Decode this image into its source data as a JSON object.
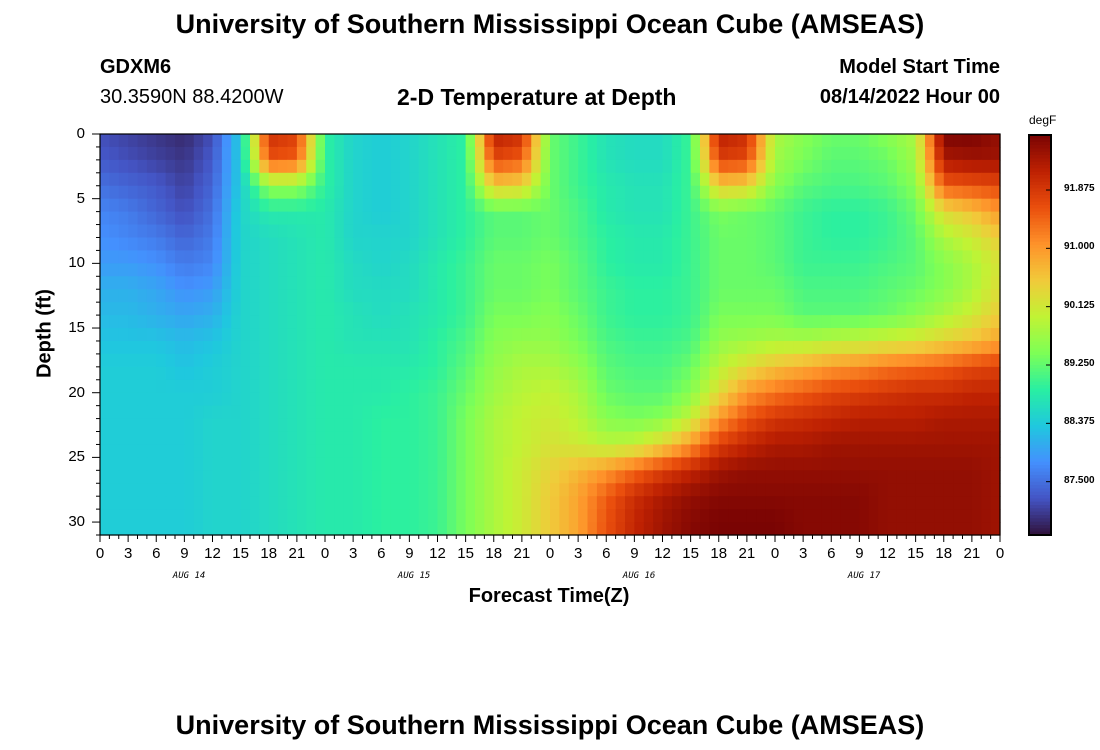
{
  "header": {
    "title": "University of Southern Mississippi Ocean Cube (AMSEAS)",
    "station_id": "GDXM6",
    "station_coords": "30.3590N  88.4200W",
    "plot_title": "2-D Temperature at Depth",
    "model_start_label": "Model Start Time",
    "model_start_value": "08/14/2022 Hour 00"
  },
  "footer": {
    "title": "University of Southern Mississippi Ocean Cube (AMSEAS)"
  },
  "chart_data": {
    "type": "heatmap",
    "xlabel": "Forecast Time(Z)",
    "ylabel": "Depth (ft)",
    "colorbar_label": "degF",
    "x_range_hours": [
      0,
      96
    ],
    "y_range_ft": [
      0,
      31
    ],
    "x_tick_labels": [
      "0",
      "3",
      "6",
      "9",
      "12",
      "15",
      "18",
      "21",
      "0",
      "3",
      "6",
      "9",
      "12",
      "15",
      "18",
      "21",
      "0",
      "3",
      "6",
      "9",
      "12",
      "15",
      "18",
      "21",
      "0",
      "3",
      "6",
      "9",
      "12",
      "15",
      "18",
      "21",
      "0"
    ],
    "day_labels": [
      "AUG 14",
      "AUG 15",
      "AUG 16",
      "AUG 17"
    ],
    "y_tick_labels": [
      "0",
      "5",
      "10",
      "15",
      "20",
      "25",
      "30"
    ],
    "colorbar_ticks": [
      "91.875",
      "91.000",
      "90.125",
      "89.250",
      "88.375",
      "87.500"
    ],
    "value_range_degF": [
      86.7,
      92.7
    ],
    "colorscale": [
      "#30123b",
      "#4454c4",
      "#4490fe",
      "#1fc8de",
      "#29efa2",
      "#7dff56",
      "#c1f334",
      "#f1ca3a",
      "#fe922a",
      "#ea4f0d",
      "#be2102",
      "#7a0403"
    ],
    "grid": false,
    "time_hours": [
      0,
      3,
      6,
      9,
      12,
      15,
      18,
      21,
      24,
      27,
      30,
      33,
      36,
      39,
      42,
      45,
      48,
      51,
      54,
      57,
      60,
      63,
      66,
      69,
      72,
      75,
      78,
      81,
      84,
      87,
      90,
      93,
      96
    ],
    "depth_ft": [
      0,
      2,
      4,
      6,
      8,
      10,
      12,
      14,
      16,
      18,
      20,
      22,
      24,
      26,
      28,
      30,
      31
    ],
    "values_degF": [
      [
        87.2,
        87.1,
        87.0,
        86.9,
        87.2,
        88.4,
        92.0,
        91.8,
        88.9,
        88.5,
        88.4,
        88.5,
        88.7,
        88.9,
        92.2,
        92.0,
        89.3,
        89.0,
        88.7,
        88.6,
        88.6,
        89.0,
        92.2,
        92.0,
        89.8,
        89.5,
        89.3,
        89.3,
        89.5,
        89.8,
        92.7,
        92.7,
        92.5
      ],
      [
        87.3,
        87.2,
        87.1,
        87.0,
        87.3,
        88.4,
        91.6,
        91.5,
        88.9,
        88.5,
        88.4,
        88.5,
        88.7,
        88.9,
        91.7,
        91.5,
        89.3,
        89.0,
        88.7,
        88.6,
        88.6,
        89.0,
        91.8,
        91.7,
        89.7,
        89.4,
        89.2,
        89.2,
        89.3,
        89.7,
        92.3,
        92.4,
        92.4
      ],
      [
        87.5,
        87.4,
        87.3,
        87.1,
        87.4,
        88.4,
        89.6,
        89.6,
        88.9,
        88.5,
        88.4,
        88.5,
        88.7,
        88.9,
        90.5,
        90.4,
        89.3,
        89.0,
        88.8,
        88.7,
        88.7,
        89.0,
        90.5,
        90.4,
        89.5,
        89.2,
        89.1,
        89.1,
        89.2,
        89.5,
        91.5,
        91.6,
        91.7
      ],
      [
        87.7,
        87.6,
        87.4,
        87.2,
        87.5,
        88.5,
        88.8,
        88.8,
        88.8,
        88.5,
        88.4,
        88.5,
        88.7,
        88.9,
        89.2,
        89.2,
        89.3,
        89.1,
        88.8,
        88.7,
        88.7,
        89.0,
        89.4,
        89.3,
        89.2,
        89.0,
        88.9,
        88.9,
        89.0,
        89.3,
        90.3,
        90.6,
        91.0
      ],
      [
        87.8,
        87.7,
        87.6,
        87.4,
        87.6,
        88.5,
        88.6,
        88.7,
        88.8,
        88.5,
        88.5,
        88.5,
        88.7,
        88.9,
        89.2,
        89.2,
        89.3,
        89.1,
        88.9,
        88.8,
        88.8,
        89.0,
        89.3,
        89.3,
        89.2,
        89.0,
        88.9,
        88.9,
        89.0,
        89.2,
        89.8,
        90.1,
        90.5
      ],
      [
        87.9,
        87.9,
        87.8,
        87.6,
        87.7,
        88.5,
        88.6,
        88.7,
        88.8,
        88.6,
        88.5,
        88.6,
        88.8,
        89.0,
        89.3,
        89.3,
        89.4,
        89.2,
        88.9,
        88.8,
        88.8,
        89.0,
        89.3,
        89.3,
        89.2,
        89.0,
        89.0,
        89.0,
        89.1,
        89.2,
        89.5,
        89.8,
        90.2
      ],
      [
        88.1,
        88.1,
        88.0,
        87.8,
        87.9,
        88.5,
        88.6,
        88.7,
        88.8,
        88.6,
        88.6,
        88.6,
        88.8,
        89.0,
        89.3,
        89.3,
        89.4,
        89.2,
        89.0,
        88.9,
        88.9,
        89.0,
        89.3,
        89.3,
        89.3,
        89.1,
        89.1,
        89.1,
        89.2,
        89.3,
        89.5,
        89.8,
        90.3
      ],
      [
        88.2,
        88.2,
        88.1,
        88.0,
        88.1,
        88.5,
        88.6,
        88.7,
        88.8,
        88.7,
        88.6,
        88.7,
        88.8,
        89.0,
        89.4,
        89.4,
        89.5,
        89.3,
        89.0,
        88.9,
        88.9,
        89.0,
        89.4,
        89.4,
        89.4,
        89.2,
        89.2,
        89.2,
        89.3,
        89.5,
        89.8,
        90.1,
        90.5
      ],
      [
        88.3,
        88.3,
        88.3,
        88.2,
        88.3,
        88.5,
        88.6,
        88.7,
        88.8,
        88.7,
        88.7,
        88.7,
        88.9,
        89.1,
        89.5,
        89.6,
        89.6,
        89.4,
        89.1,
        89.0,
        89.0,
        89.1,
        89.6,
        89.7,
        89.8,
        89.8,
        89.9,
        90.0,
        90.1,
        90.2,
        90.4,
        90.6,
        90.9
      ],
      [
        88.4,
        88.4,
        88.4,
        88.3,
        88.4,
        88.5,
        88.6,
        88.7,
        88.8,
        88.8,
        88.8,
        88.8,
        88.9,
        89.2,
        89.6,
        89.8,
        89.8,
        89.6,
        89.2,
        89.1,
        89.1,
        89.3,
        89.9,
        90.3,
        90.6,
        90.8,
        91.0,
        91.1,
        91.3,
        91.4,
        91.5,
        91.7,
        91.8
      ],
      [
        88.4,
        88.4,
        88.4,
        88.4,
        88.4,
        88.5,
        88.6,
        88.7,
        88.8,
        88.8,
        88.8,
        88.9,
        89.0,
        89.3,
        89.7,
        89.9,
        90.0,
        89.8,
        89.3,
        89.2,
        89.2,
        89.5,
        90.3,
        91.0,
        91.3,
        91.5,
        91.7,
        91.8,
        91.9,
        92.0,
        92.0,
        92.1,
        92.1
      ],
      [
        88.4,
        88.4,
        88.4,
        88.4,
        88.5,
        88.5,
        88.6,
        88.7,
        88.8,
        88.8,
        88.9,
        88.9,
        89.0,
        89.4,
        89.8,
        90.0,
        90.1,
        89.9,
        89.5,
        89.4,
        89.5,
        90.0,
        91.0,
        91.6,
        91.9,
        92.0,
        92.1,
        92.2,
        92.2,
        92.2,
        92.3,
        92.3,
        92.3
      ],
      [
        88.4,
        88.4,
        88.4,
        88.4,
        88.5,
        88.5,
        88.6,
        88.7,
        88.8,
        88.8,
        88.9,
        88.9,
        89.0,
        89.4,
        89.8,
        90.0,
        90.2,
        90.1,
        89.9,
        90.0,
        90.4,
        91.0,
        91.8,
        92.1,
        92.3,
        92.3,
        92.4,
        92.4,
        92.4,
        92.4,
        92.4,
        92.4,
        92.4
      ],
      [
        88.4,
        88.4,
        88.4,
        88.4,
        88.5,
        88.5,
        88.6,
        88.7,
        88.8,
        88.8,
        88.9,
        88.9,
        89.0,
        89.4,
        89.8,
        90.1,
        90.4,
        90.7,
        91.0,
        91.4,
        91.8,
        92.1,
        92.4,
        92.5,
        92.5,
        92.5,
        92.5,
        92.5,
        92.5,
        92.5,
        92.5,
        92.5,
        92.4
      ],
      [
        88.4,
        88.4,
        88.4,
        88.4,
        88.5,
        88.5,
        88.6,
        88.7,
        88.8,
        88.8,
        88.9,
        88.9,
        89.0,
        89.4,
        89.8,
        90.1,
        90.5,
        90.9,
        91.5,
        92.0,
        92.3,
        92.5,
        92.6,
        92.6,
        92.6,
        92.6,
        92.6,
        92.6,
        92.5,
        92.5,
        92.5,
        92.5,
        92.4
      ],
      [
        88.4,
        88.4,
        88.4,
        88.4,
        88.5,
        88.5,
        88.6,
        88.7,
        88.8,
        88.8,
        88.9,
        88.9,
        89.0,
        89.4,
        89.8,
        90.1,
        90.5,
        90.9,
        91.6,
        92.1,
        92.4,
        92.6,
        92.7,
        92.7,
        92.7,
        92.6,
        92.6,
        92.6,
        92.5,
        92.5,
        92.5,
        92.5,
        92.4
      ],
      [
        88.4,
        88.4,
        88.4,
        88.4,
        88.5,
        88.5,
        88.6,
        88.7,
        88.8,
        88.8,
        88.9,
        88.9,
        89.0,
        89.4,
        89.8,
        90.1,
        90.5,
        90.9,
        91.6,
        92.1,
        92.4,
        92.6,
        92.7,
        92.7,
        92.7,
        92.6,
        92.6,
        92.6,
        92.5,
        92.5,
        92.5,
        92.5,
        92.4
      ]
    ]
  }
}
